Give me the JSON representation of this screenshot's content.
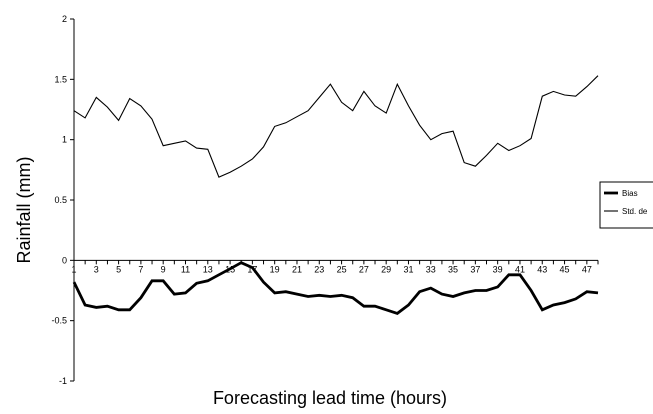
{
  "chart_data": {
    "type": "line",
    "title": "",
    "xlabel": "Forecasting lead time (hours)",
    "ylabel": "Rainfall (mm)",
    "ylim": [
      -1,
      2
    ],
    "xlim": [
      1,
      48
    ],
    "y_ticks": [
      -1,
      -0.5,
      0,
      0.5,
      1,
      1.5,
      2
    ],
    "y_tick_labels": [
      "-1",
      "-0.5",
      "0",
      "0.5",
      "1",
      "1.5",
      "2"
    ],
    "x_ticks": [
      1,
      3,
      5,
      7,
      9,
      11,
      13,
      15,
      17,
      19,
      21,
      23,
      25,
      27,
      29,
      31,
      33,
      35,
      37,
      39,
      41,
      43,
      45,
      47
    ],
    "x_tick_labels": [
      "1",
      "3",
      "5",
      "7",
      "9",
      "11",
      "13",
      "15",
      "17",
      "19",
      "21",
      "23",
      "25",
      "27",
      "29",
      "31",
      "33",
      "35",
      "37",
      "39",
      "41",
      "43",
      "45",
      "47"
    ],
    "x": [
      1,
      2,
      3,
      4,
      5,
      6,
      7,
      8,
      9,
      10,
      11,
      12,
      13,
      14,
      15,
      16,
      17,
      18,
      19,
      20,
      21,
      22,
      23,
      24,
      25,
      26,
      27,
      28,
      29,
      30,
      31,
      32,
      33,
      34,
      35,
      36,
      37,
      38,
      39,
      40,
      41,
      42,
      43,
      44,
      45,
      46,
      47,
      48
    ],
    "series": [
      {
        "name": "Bias",
        "color": "#000000",
        "values": [
          -0.18,
          -0.37,
          -0.39,
          -0.38,
          -0.41,
          -0.41,
          -0.31,
          -0.17,
          -0.17,
          -0.28,
          -0.27,
          -0.19,
          -0.17,
          -0.12,
          -0.07,
          -0.02,
          -0.06,
          -0.18,
          -0.27,
          -0.26,
          -0.28,
          -0.3,
          -0.29,
          -0.3,
          -0.29,
          -0.31,
          -0.38,
          -0.38,
          -0.41,
          -0.44,
          -0.37,
          -0.26,
          -0.23,
          -0.28,
          -0.3,
          -0.27,
          -0.25,
          -0.25,
          -0.22,
          -0.12,
          -0.12,
          -0.25,
          -0.41,
          -0.37,
          -0.35,
          -0.32,
          -0.26,
          -0.27
        ]
      },
      {
        "name": "Std. de",
        "color": "#000000",
        "values": [
          1.24,
          1.18,
          1.35,
          1.27,
          1.16,
          1.34,
          1.28,
          1.17,
          0.95,
          0.97,
          0.99,
          0.93,
          0.92,
          0.69,
          0.73,
          0.78,
          0.84,
          0.94,
          1.11,
          1.14,
          1.19,
          1.24,
          1.35,
          1.46,
          1.31,
          1.24,
          1.4,
          1.28,
          1.22,
          1.46,
          1.28,
          1.12,
          1.0,
          1.05,
          1.07,
          0.81,
          0.78,
          0.87,
          0.97,
          0.91,
          0.95,
          1.01,
          1.36,
          1.4,
          1.37,
          1.36,
          1.44,
          1.53
        ]
      }
    ],
    "legend": {
      "position": "right"
    },
    "grid": false
  }
}
